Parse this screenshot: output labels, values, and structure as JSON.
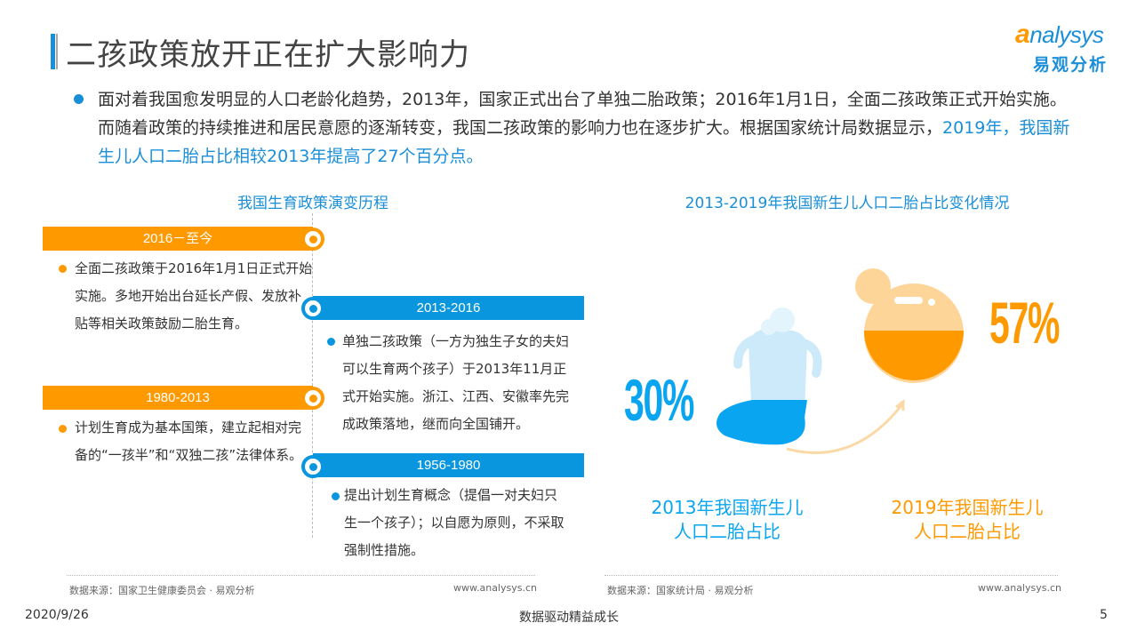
{
  "header": {
    "title": "二孩政策放开正在扩大影响力",
    "logo_en": "analysys",
    "logo_cn": "易观分析"
  },
  "intro": {
    "text_a": "面对着我国愈发明显的人口老龄化趋势，2013年，国家正式出台了单独二胎政策；2016年1月1日，全面二孩政策正式开始实施。而随着政策的持续推进和居民意愿的逐渐转变，我国二孩政策的影响力也在逐步扩大。根据国家统计局数据显示，",
    "highlight": "2019年，我国新生儿人口二胎占比相较2013年提高了27个百分点。"
  },
  "timeline": {
    "title": "我国生育政策演变历程",
    "items": [
      {
        "period": "2016－至今",
        "text": "全面二孩政策于2016年1月1日正式开始实施。多地开始出台延长产假、发放补贴等相关政策鼓励二胎生育。",
        "color": "#ff9900"
      },
      {
        "period": "2013-2016",
        "text": "单独二孩政策（一方为独生子女的夫妇可以生育两个孩子）于2013年11月正式开始实施。浙江、江西、安徽率先完成政策落地，继而向全国铺开。",
        "color": "#0a96de"
      },
      {
        "period": "1980-2013",
        "text": "计划生育成为基本国策，建立起相对完备的“一孩半”和“双独二孩”法律体系。",
        "color": "#ff9900"
      },
      {
        "period": "1956-1980",
        "text": "提出计划生育概念（提倡一对夫妇只生一个孩子）；以自愿为原则，不采取强制性措施。",
        "color": "#0a96de"
      }
    ],
    "source": "数据来源：国家卫生健康委员会 · 易观分析",
    "url": "www.analysys.cn"
  },
  "comparison": {
    "title": "2013-2019年我国新生儿人口二胎占比变化情况",
    "left": {
      "value": "30%",
      "fill": 0.3,
      "label_1": "2013年我国新生儿",
      "label_2": "人口二胎占比",
      "color": "#0aa5f0"
    },
    "right": {
      "value": "57%",
      "fill": 0.57,
      "label_1": "2019年我国新生儿",
      "label_2": "人口二胎占比",
      "color": "#ff9900"
    },
    "source": "数据来源：国家统计局 · 易观分析",
    "url": "www.analysys.cn"
  },
  "footer": {
    "date": "2020/9/26",
    "slogan": "数据驱动精益成长",
    "page": "5"
  }
}
